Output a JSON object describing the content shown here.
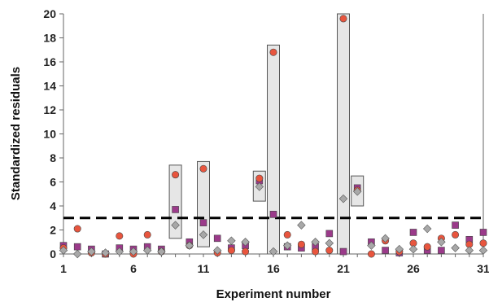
{
  "chart_data": {
    "type": "scatter",
    "title": "",
    "xlabel": "Experiment number",
    "ylabel": "Standardized residuals",
    "xlim": [
      1,
      31
    ],
    "ylim": [
      0,
      20
    ],
    "x_ticks": [
      1,
      6,
      11,
      16,
      21,
      26,
      31
    ],
    "x_tick_labels": [
      "1",
      "6",
      "11",
      "16",
      "21",
      "26",
      "31"
    ],
    "y_ticks": [
      0,
      2,
      4,
      6,
      8,
      10,
      12,
      14,
      16,
      18,
      20
    ],
    "y_tick_labels": [
      "0",
      "2",
      "4",
      "6",
      "8",
      "10",
      "12",
      "14",
      "16",
      "18",
      "20"
    ],
    "grid": false,
    "legend": "none",
    "threshold_line": {
      "y": 3,
      "style": "dashed",
      "color": "#000000"
    },
    "series": [
      {
        "marker": "square",
        "color": "#9b3a8a",
        "x": [
          1,
          2,
          3,
          4,
          5,
          6,
          7,
          8,
          9,
          10,
          11,
          12,
          13,
          14,
          15,
          16,
          17,
          18,
          19,
          20,
          21,
          22,
          23,
          24,
          25,
          26,
          27,
          28,
          29,
          30,
          31
        ],
        "y": [
          0.7,
          0.6,
          0.4,
          0.0,
          0.5,
          0.4,
          0.6,
          0.4,
          3.7,
          1.0,
          2.6,
          1.3,
          0.5,
          0.7,
          6.1,
          3.3,
          0.6,
          0.5,
          0.6,
          1.7,
          0.2,
          5.5,
          1.0,
          0.3,
          0.1,
          1.8,
          0.3,
          0.3,
          2.4,
          1.2,
          1.8
        ]
      },
      {
        "marker": "circle",
        "color": "#e8553e",
        "x": [
          1,
          2,
          3,
          4,
          5,
          6,
          7,
          8,
          9,
          10,
          11,
          12,
          13,
          14,
          15,
          16,
          17,
          18,
          19,
          20,
          21,
          22,
          23,
          24,
          25,
          26,
          27,
          28,
          29,
          30,
          31
        ],
        "y": [
          0.5,
          2.1,
          0.1,
          0.0,
          1.5,
          0.0,
          1.6,
          0.2,
          6.6,
          0.7,
          7.1,
          0.1,
          0.3,
          0.2,
          6.3,
          16.8,
          1.6,
          0.8,
          0.2,
          0.3,
          19.6,
          5.3,
          0.0,
          1.1,
          0.2,
          0.9,
          0.6,
          1.3,
          1.6,
          0.8,
          0.9
        ]
      },
      {
        "marker": "diamond",
        "color": "#a8a8a8",
        "x": [
          1,
          2,
          3,
          4,
          5,
          6,
          7,
          8,
          9,
          10,
          11,
          12,
          13,
          14,
          15,
          16,
          17,
          18,
          19,
          20,
          21,
          22,
          23,
          24,
          25,
          26,
          27,
          28,
          29,
          30,
          31
        ],
        "y": [
          0.3,
          0.0,
          0.2,
          0.1,
          0.2,
          0.2,
          0.3,
          0.2,
          2.4,
          0.7,
          1.6,
          0.3,
          1.1,
          1.0,
          5.6,
          0.2,
          0.7,
          2.4,
          1.0,
          0.9,
          4.6,
          5.2,
          0.7,
          1.3,
          0.4,
          0.4,
          2.1,
          1.0,
          0.5,
          0.3,
          0.3
        ]
      }
    ],
    "highlight_boxes": [
      {
        "x": 9,
        "y_range": [
          1.3,
          7.4
        ]
      },
      {
        "x": 11,
        "y_range": [
          0.6,
          7.7
        ]
      },
      {
        "x": 15,
        "y_range": [
          4.4,
          6.9
        ]
      },
      {
        "x": 16,
        "y_range": [
          0.0,
          17.4
        ]
      },
      {
        "x": 21,
        "y_range": [
          0.0,
          20.0
        ]
      },
      {
        "x": 22,
        "y_range": [
          4.0,
          6.5
        ]
      }
    ],
    "highlight_style": {
      "fill": "#e6e6e6",
      "stroke": "#555555"
    }
  }
}
